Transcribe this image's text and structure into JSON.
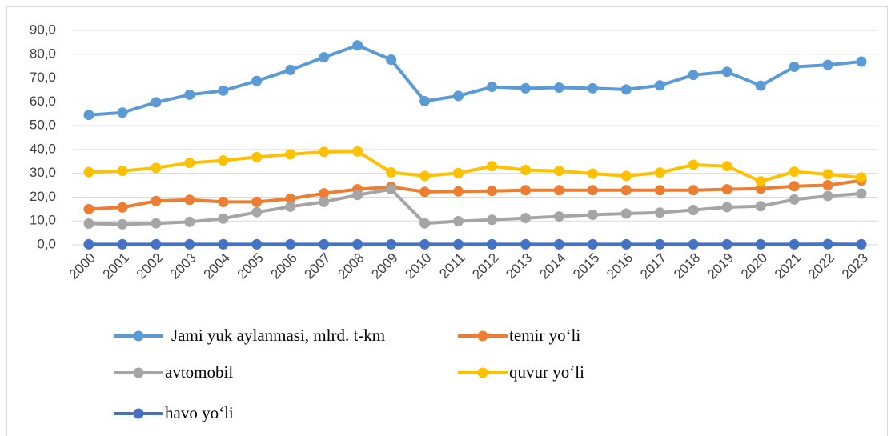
{
  "chart_data": {
    "type": "line",
    "categories": [
      "2000",
      "2001",
      "2002",
      "2003",
      "2004",
      "2005",
      "2006",
      "2007",
      "2008",
      "2009",
      "2010",
      "2011",
      "2012",
      "2013",
      "2014",
      "2015",
      "2016",
      "2017",
      "2018",
      "2019",
      "2020",
      "2021",
      "2022",
      "2023"
    ],
    "series": [
      {
        "name": "Jami yuk aylanmasi, mlrd. t-km",
        "color": "#5b9bd5",
        "values": [
          54.5,
          55.5,
          59.8,
          63.0,
          64.7,
          68.8,
          73.4,
          78.7,
          83.7,
          77.7,
          60.3,
          62.5,
          66.3,
          65.7,
          66.0,
          65.7,
          65.2,
          66.9,
          71.3,
          72.6,
          66.8,
          74.7,
          75.5,
          76.9
        ]
      },
      {
        "name": "temir yo‘li",
        "color": "#ed7d31",
        "values": [
          15.0,
          15.7,
          18.4,
          18.9,
          18.0,
          18.0,
          19.3,
          21.6,
          23.3,
          24.3,
          22.2,
          22.4,
          22.6,
          22.9,
          22.9,
          22.9,
          22.9,
          22.9,
          22.9,
          23.3,
          23.6,
          24.6,
          25.0,
          27.0
        ]
      },
      {
        "name": "avtomobil",
        "color": "#a5a5a5",
        "values": [
          8.9,
          8.6,
          9.0,
          9.6,
          11.0,
          13.7,
          16.0,
          18.0,
          20.9,
          23.3,
          9.0,
          9.9,
          10.5,
          11.2,
          11.9,
          12.6,
          13.1,
          13.5,
          14.6,
          15.8,
          16.2,
          19.0,
          20.5,
          21.5
        ]
      },
      {
        "name": "quvur yo‘li",
        "color": "#ffc000",
        "values": [
          30.5,
          31.0,
          32.3,
          34.4,
          35.4,
          36.8,
          38.0,
          39.0,
          39.2,
          30.4,
          28.9,
          30.1,
          33.0,
          31.4,
          31.0,
          29.9,
          28.9,
          30.3,
          33.6,
          33.0,
          26.6,
          30.7,
          29.6,
          28.2
        ]
      },
      {
        "name": "havo yo‘li",
        "color": "#4472c4",
        "values": [
          0.2,
          0.2,
          0.2,
          0.2,
          0.2,
          0.2,
          0.2,
          0.2,
          0.2,
          0.2,
          0.2,
          0.2,
          0.2,
          0.2,
          0.2,
          0.2,
          0.2,
          0.2,
          0.2,
          0.2,
          0.2,
          0.2,
          0.3,
          0.2
        ]
      }
    ],
    "ylim": [
      0,
      90
    ],
    "yticks": [
      {
        "value": 0,
        "label": "0,0"
      },
      {
        "value": 10,
        "label": "10,0"
      },
      {
        "value": 20,
        "label": "20,0"
      },
      {
        "value": 30,
        "label": "30,0"
      },
      {
        "value": 40,
        "label": "40,0"
      },
      {
        "value": 50,
        "label": "50,0"
      },
      {
        "value": 60,
        "label": "60,0"
      },
      {
        "value": 70,
        "label": "70,0"
      },
      {
        "value": 80,
        "label": "80,0"
      },
      {
        "value": 90,
        "label": "90,0"
      }
    ],
    "grid": true
  }
}
